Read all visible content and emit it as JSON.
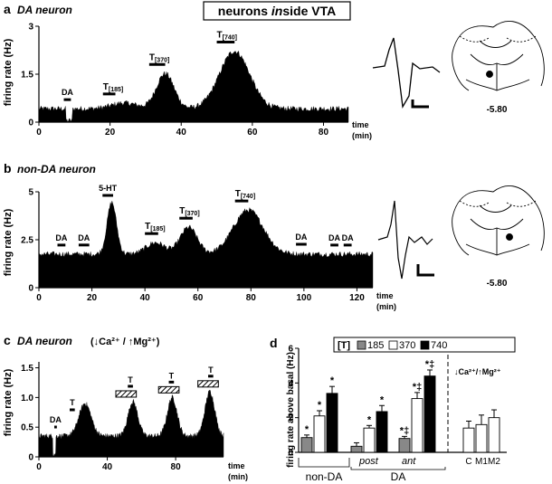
{
  "figure_title": {
    "pre": "neurons ",
    "em": "in",
    "post": "side VTA"
  },
  "panels": {
    "a": {
      "letter": "a",
      "title": "DA neuron",
      "ylabel": "firing rate (Hz)",
      "xlabel_1": "time",
      "xlabel_2": "(min)",
      "yticks": [
        "0",
        "1.5",
        "3"
      ],
      "xticks": [
        "0",
        "20",
        "40",
        "60",
        "80"
      ],
      "markers": [
        "DA",
        "T[185]",
        "T[370]",
        "T[740]"
      ],
      "coord": "-5.80"
    },
    "b": {
      "letter": "b",
      "title": "non-DA neuron",
      "ylabel": "firing rate (Hz)",
      "xlabel_1": "time",
      "xlabel_2": "(min)",
      "yticks": [
        "0",
        "2.5",
        "5"
      ],
      "xticks": [
        "0",
        "20",
        "40",
        "60",
        "80",
        "100",
        "120"
      ],
      "markers": [
        "5-HT",
        "DA",
        "DA",
        "T[185]",
        "T[370]",
        "T[740]",
        "DA",
        "DA",
        "DA"
      ],
      "coord": "-5.80"
    },
    "c": {
      "letter": "c",
      "title": "DA neuron",
      "condition": "(↓Ca²⁺ / ↑Mg²⁺)",
      "ylabel": "firing rate (Hz)",
      "xlabel_1": "time",
      "xlabel_2": "(min)",
      "yticks": [
        "0",
        "0.5",
        "1.0",
        "1.5"
      ],
      "xticks": [
        "0",
        "40",
        "80"
      ],
      "markers": [
        "DA",
        "T",
        "T",
        "T",
        "T"
      ]
    },
    "d": {
      "letter": "d",
      "ylabel": "firing rate above basal (Hz)",
      "yticks": [
        "0",
        "2",
        "4",
        "6"
      ],
      "legend_bracket": "[T]",
      "legend": [
        "185",
        "370",
        "740"
      ],
      "condition": "↓Ca²⁺/↑Mg²⁺",
      "group_labels": [
        "post",
        "ant"
      ],
      "section_labels": [
        "non-DA",
        "DA"
      ],
      "control_labels": [
        "C",
        "M1",
        "M2"
      ]
    }
  },
  "chart_data": [
    {
      "type": "area",
      "panel": "a",
      "title": "DA neuron",
      "ylabel": "firing rate (Hz)",
      "xlabel": "time (min)",
      "xlim": [
        0,
        87
      ],
      "ylim": [
        0,
        3
      ],
      "baseline": 0.42,
      "dip": {
        "start": 7.5,
        "end": 9.5,
        "value": 0.05
      },
      "peaks": [
        {
          "x": 24,
          "height": 0.18,
          "width": 5
        },
        {
          "x": 35.5,
          "height": 1.1,
          "width": 3.5
        },
        {
          "x": 55,
          "height": 1.8,
          "width": 6
        }
      ],
      "events": [
        {
          "label": "DA",
          "start": 7,
          "end": 9
        },
        {
          "label": "T[185]",
          "start": 18,
          "end": 21.5
        },
        {
          "label": "T[370]",
          "start": 31,
          "end": 35.5
        },
        {
          "label": "T[740]",
          "start": 50,
          "end": 55
        }
      ]
    },
    {
      "type": "area",
      "panel": "b",
      "title": "non-DA neuron",
      "ylabel": "firing rate (Hz)",
      "xlabel": "time (min)",
      "xlim": [
        0,
        126
      ],
      "ylim": [
        0,
        5
      ],
      "baseline": 1.75,
      "peaks": [
        {
          "x": 27.5,
          "height": 2.7,
          "width": 2.5
        },
        {
          "x": 44,
          "height": 0.6,
          "width": 5
        },
        {
          "x": 56.5,
          "height": 1.4,
          "width": 4.5
        },
        {
          "x": 79,
          "height": 2.3,
          "width": 8
        }
      ],
      "events": [
        {
          "label": "DA",
          "start": 7,
          "end": 10
        },
        {
          "label": "DA",
          "start": 15,
          "end": 19
        },
        {
          "label": "5-HT",
          "start": 24,
          "end": 28
        },
        {
          "label": "T[185]",
          "start": 40,
          "end": 45
        },
        {
          "label": "T[370]",
          "start": 53,
          "end": 58
        },
        {
          "label": "T[740]",
          "start": 74,
          "end": 79
        },
        {
          "label": "DA",
          "start": 97,
          "end": 101
        },
        {
          "label": "DA",
          "start": 110,
          "end": 113
        },
        {
          "label": "DA",
          "start": 115,
          "end": 118
        }
      ]
    },
    {
      "type": "area",
      "panel": "c",
      "title": "DA neuron (↓Ca²⁺ / ↑Mg²⁺)",
      "ylabel": "firing rate (Hz)",
      "xlabel": "time (min)",
      "xlim": [
        0,
        108
      ],
      "ylim": [
        0,
        1.6
      ],
      "baseline": 0.35,
      "dip": {
        "start": 8,
        "end": 10,
        "value": 0.05
      },
      "peaks": [
        {
          "x": 27,
          "height": 0.55,
          "width": 5
        },
        {
          "x": 55,
          "height": 0.58,
          "width": 4
        },
        {
          "x": 78,
          "height": 0.65,
          "width": 4
        },
        {
          "x": 100,
          "height": 0.75,
          "width": 4
        }
      ],
      "events": [
        {
          "label": "DA",
          "start": 9,
          "end": 10.5,
          "hatched": false
        },
        {
          "label": "T",
          "start": 18,
          "end": 21,
          "hatched": false
        },
        {
          "label": "T",
          "start": 45,
          "end": 57,
          "hatched": true,
          "bar": [
            52,
            55
          ]
        },
        {
          "label": "T",
          "start": 70,
          "end": 82,
          "hatched": true,
          "bar": [
            76,
            79
          ]
        },
        {
          "label": "T",
          "start": 93,
          "end": 105,
          "hatched": true,
          "bar": [
            99,
            102
          ]
        }
      ]
    },
    {
      "type": "bar",
      "panel": "d",
      "ylabel": "firing rate above basal (Hz)",
      "ylim": [
        0,
        6
      ],
      "series_colors": {
        "185": "#888888",
        "370": "#ffffff",
        "740": "#000000"
      },
      "groups": [
        {
          "section": "non-DA",
          "bars": [
            {
              "dose": "185",
              "value": 0.85,
              "err": 0.15,
              "mark": "*"
            },
            {
              "dose": "370",
              "value": 2.1,
              "err": 0.3,
              "mark": "*"
            },
            {
              "dose": "740",
              "value": 3.4,
              "err": 0.4,
              "mark": "*"
            }
          ]
        },
        {
          "section": "DA",
          "label": "post",
          "bars": [
            {
              "dose": "185",
              "value": 0.35,
              "err": 0.2,
              "mark": ""
            },
            {
              "dose": "370",
              "value": 1.4,
              "err": 0.15,
              "mark": "*"
            },
            {
              "dose": "740",
              "value": 2.35,
              "err": 0.35,
              "mark": "*"
            }
          ]
        },
        {
          "section": "DA",
          "label": "ant",
          "bars": [
            {
              "dose": "185",
              "value": 0.8,
              "err": 0.12,
              "mark": "*‡"
            },
            {
              "dose": "370",
              "value": 3.1,
              "err": 0.35,
              "mark": "*‡"
            },
            {
              "dose": "740",
              "value": 4.4,
              "err": 0.35,
              "mark": "*‡"
            }
          ]
        },
        {
          "section": "controls",
          "bars": [
            {
              "dose": "370",
              "label": "C",
              "value": 1.4,
              "err": 0.4,
              "mark": ""
            },
            {
              "dose": "370",
              "label": "M1",
              "value": 1.6,
              "err": 0.55,
              "mark": ""
            },
            {
              "dose": "370",
              "label": "M2",
              "value": 2.0,
              "err": 0.45,
              "mark": ""
            }
          ]
        }
      ]
    }
  ]
}
